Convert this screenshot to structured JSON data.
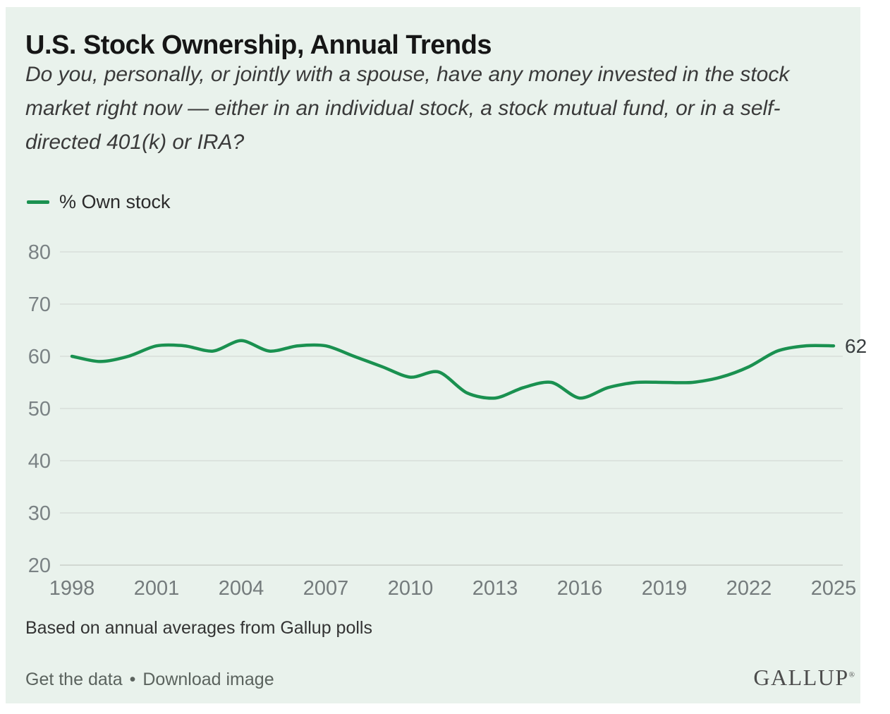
{
  "header": {
    "title": "U.S. Stock Ownership, Annual Trends",
    "subtitle_lines": [
      "Do you, personally, or jointly with a spouse, have any money invested in the stock",
      "market right now — either in an individual stock, a stock mutual fund, or in a self-",
      "directed 401(k) or IRA?"
    ]
  },
  "legend": {
    "label": "% Own stock"
  },
  "chart_data": {
    "type": "line",
    "title": "U.S. Stock Ownership, Annual Trends",
    "x": [
      1998,
      1999,
      2000,
      2001,
      2002,
      2003,
      2004,
      2005,
      2006,
      2007,
      2008,
      2009,
      2010,
      2011,
      2012,
      2013,
      2014,
      2015,
      2016,
      2017,
      2018,
      2019,
      2020,
      2021,
      2022,
      2023,
      2024,
      2025
    ],
    "series": [
      {
        "name": "% Own stock",
        "values": [
          60,
          59,
          60,
          62,
          62,
          61,
          63,
          61,
          62,
          62,
          60,
          58,
          56,
          57,
          53,
          52,
          54,
          55,
          52,
          54,
          55,
          55,
          55,
          56,
          58,
          61,
          62,
          62
        ]
      }
    ],
    "ylim": [
      20,
      80
    ],
    "y_ticks": [
      20,
      30,
      40,
      50,
      60,
      70,
      80
    ],
    "x_ticks": [
      1998,
      2001,
      2004,
      2007,
      2010,
      2013,
      2016,
      2019,
      2022,
      2025
    ],
    "grid": "horizontal",
    "legend_position": "top-left",
    "end_label": "62",
    "line_color": "#1a9150",
    "grid_color": "#d8ded9",
    "axis_label_color": "#7a8284",
    "end_label_color": "#383d3f"
  },
  "footer": {
    "note": "Based on annual averages from Gallup polls",
    "links": [
      "Get the data",
      "Download image"
    ],
    "separator": "•"
  },
  "branding": {
    "logo": "GALLUP",
    "registered": "®"
  }
}
